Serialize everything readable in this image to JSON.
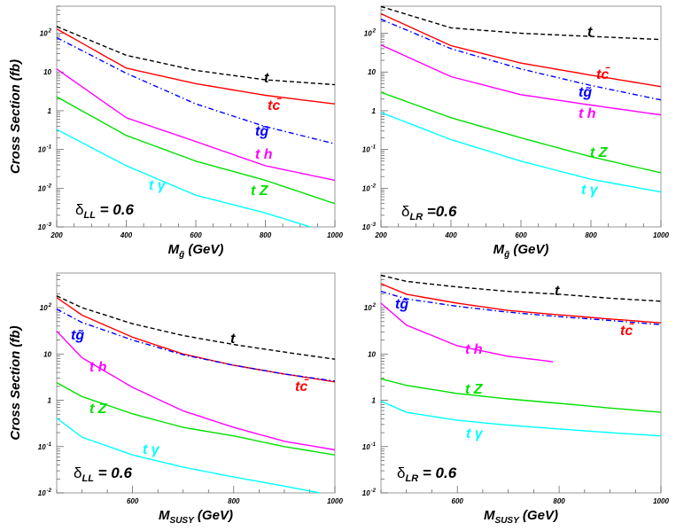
{
  "colors": {
    "t": "#000000",
    "tc": "#ff0000",
    "tg": "#0000ff",
    "th": "#ff00ff",
    "tZ": "#00e000",
    "tgamma": "#00ffff"
  },
  "chart_data": [
    {
      "type": "line",
      "yscale": "log",
      "grid": false,
      "xlabel": {
        "main": "M",
        "sub": "g̃",
        "unit": " (GeV)"
      },
      "ylabel": "Cross Section (fb)",
      "annotation": {
        "symbol": "δ",
        "sub": "LL",
        "value": " = 0.6"
      },
      "xlim": [
        200,
        1000
      ],
      "ylim": [
        0.001,
        500
      ],
      "xticks": [
        "200",
        "400",
        "600",
        "800",
        "1000"
      ],
      "yticks": [
        {
          "v": 0.001,
          "base": "10",
          "exp": "-3"
        },
        {
          "v": 0.01,
          "base": "10",
          "exp": "-2"
        },
        {
          "v": 0.1,
          "base": "10",
          "exp": "-1"
        },
        {
          "v": 1,
          "base": "1",
          "exp": ""
        },
        {
          "v": 10,
          "base": "10",
          "exp": ""
        },
        {
          "v": 100,
          "base": "10",
          "exp": "2"
        }
      ],
      "series": [
        {
          "name": "t",
          "key": "t",
          "style": "dashed",
          "x": [
            200,
            400,
            600,
            800,
            1000
          ],
          "y": [
            150,
            27,
            11,
            6.3,
            4.7
          ]
        },
        {
          "name": "tc̄",
          "key": "tc",
          "style": "solid",
          "x": [
            200,
            400,
            600,
            800,
            1000
          ],
          "y": [
            130,
            12.6,
            5,
            2.5,
            1.5
          ]
        },
        {
          "name": "tg̃",
          "key": "tg",
          "style": "dashdot",
          "x": [
            200,
            400,
            600,
            800,
            1000
          ],
          "y": [
            77,
            9.3,
            1.5,
            0.39,
            0.14
          ]
        },
        {
          "name": "t h",
          "key": "th",
          "style": "solid",
          "x": [
            200,
            400,
            600,
            800,
            1000
          ],
          "y": [
            12,
            0.66,
            0.16,
            0.038,
            0.016
          ]
        },
        {
          "name": "t Z",
          "key": "tZ",
          "style": "solid",
          "x": [
            200,
            400,
            600,
            800,
            1000
          ],
          "y": [
            2.3,
            0.23,
            0.05,
            0.016,
            0.004
          ]
        },
        {
          "name": "t γ",
          "key": "tgamma",
          "style": "solid",
          "x": [
            200,
            400,
            600,
            800,
            930
          ],
          "y": [
            0.33,
            0.038,
            0.0066,
            0.0023,
            0.001
          ]
        }
      ]
    },
    {
      "type": "line",
      "yscale": "log",
      "grid": false,
      "xlabel": {
        "main": "M",
        "sub": "g̃",
        "unit": " (GeV)"
      },
      "ylabel": "",
      "annotation": {
        "symbol": "δ",
        "sub": "LR",
        "value": " =0.6"
      },
      "xlim": [
        200,
        1000
      ],
      "ylim": [
        0.001,
        500
      ],
      "xticks": [
        "200",
        "400",
        "600",
        "800",
        "1000"
      ],
      "yticks": [
        {
          "v": 0.001,
          "base": "10",
          "exp": "-3"
        },
        {
          "v": 0.01,
          "base": "10",
          "exp": "-2"
        },
        {
          "v": 0.1,
          "base": "10",
          "exp": "-1"
        },
        {
          "v": 1,
          "base": "1",
          "exp": ""
        },
        {
          "v": 10,
          "base": "10",
          "exp": ""
        },
        {
          "v": 100,
          "base": "10",
          "exp": "2"
        }
      ],
      "series": [
        {
          "name": "t",
          "key": "t",
          "style": "dashed",
          "x": [
            200,
            400,
            600,
            800,
            1000
          ],
          "y": [
            490,
            138,
            100,
            83,
            69
          ]
        },
        {
          "name": "tc̄",
          "key": "tc",
          "style": "solid",
          "x": [
            200,
            400,
            600,
            800,
            1000
          ],
          "y": [
            320,
            48,
            17,
            8.3,
            4.2
          ]
        },
        {
          "name": "tg̃",
          "key": "tg",
          "style": "dashdot",
          "x": [
            200,
            400,
            600,
            800,
            1000
          ],
          "y": [
            230,
            40,
            12,
            4.5,
            1.9
          ]
        },
        {
          "name": "t h",
          "key": "th",
          "style": "solid",
          "x": [
            200,
            400,
            600,
            800,
            1000
          ],
          "y": [
            50,
            7.6,
            2.6,
            1.4,
            0.78
          ]
        },
        {
          "name": "t Z",
          "key": "tZ",
          "style": "solid",
          "x": [
            200,
            400,
            600,
            800,
            1000
          ],
          "y": [
            3,
            0.66,
            0.2,
            0.065,
            0.025
          ]
        },
        {
          "name": "t γ",
          "key": "tgamma",
          "style": "solid",
          "x": [
            200,
            400,
            600,
            800,
            1000
          ],
          "y": [
            0.9,
            0.18,
            0.05,
            0.017,
            0.008
          ]
        }
      ]
    },
    {
      "type": "line",
      "yscale": "log",
      "grid": false,
      "xlabel": {
        "main": "M",
        "sub": "SUSY",
        "unit": " (GeV)"
      },
      "ylabel": "Cross Section (fb)",
      "annotation": {
        "symbol": "δ",
        "sub": "LL",
        "value": " = 0.6"
      },
      "xlim": [
        450,
        1000
      ],
      "ylim": [
        0.01,
        560
      ],
      "xticks": [
        "600",
        "800",
        "1000"
      ],
      "yticks": [
        {
          "v": 0.01,
          "base": "10",
          "exp": "-2"
        },
        {
          "v": 0.1,
          "base": "10",
          "exp": "-1"
        },
        {
          "v": 1,
          "base": "1",
          "exp": ""
        },
        {
          "v": 10,
          "base": "10",
          "exp": ""
        },
        {
          "v": 100,
          "base": "10",
          "exp": "2"
        }
      ],
      "series": [
        {
          "name": "t",
          "key": "t",
          "style": "dashed",
          "x": [
            450,
            500,
            600,
            700,
            800,
            900,
            1000
          ],
          "y": [
            180,
            100,
            45,
            25,
            16,
            11,
            7.7
          ]
        },
        {
          "name": "tc̄",
          "key": "tc",
          "style": "solid",
          "x": [
            450,
            500,
            600,
            700,
            800,
            900,
            1000
          ],
          "y": [
            165,
            69,
            23,
            10,
            5.7,
            3.7,
            2.5
          ]
        },
        {
          "name": "tg̃",
          "key": "tg",
          "style": "dashdot",
          "x": [
            450,
            500,
            600,
            700,
            800,
            900,
            1000
          ],
          "y": [
            93,
            48,
            20,
            9.6,
            5.7,
            3.7,
            2.6
          ]
        },
        {
          "name": "t h",
          "key": "th",
          "style": "solid",
          "x": [
            450,
            500,
            600,
            700,
            800,
            900,
            1000
          ],
          "y": [
            31,
            8.3,
            1.9,
            0.59,
            0.26,
            0.13,
            0.085
          ]
        },
        {
          "name": "t Z",
          "key": "tZ",
          "style": "solid",
          "x": [
            450,
            500,
            600,
            700,
            800,
            900,
            1000
          ],
          "y": [
            2.4,
            1.2,
            0.51,
            0.26,
            0.17,
            0.1,
            0.066
          ]
        },
        {
          "name": "t γ",
          "key": "tgamma",
          "style": "solid",
          "x": [
            450,
            500,
            600,
            700,
            800,
            900,
            970
          ],
          "y": [
            0.41,
            0.16,
            0.066,
            0.036,
            0.022,
            0.014,
            0.01
          ]
        }
      ]
    },
    {
      "type": "line",
      "yscale": "log",
      "grid": false,
      "xlabel": {
        "main": "M",
        "sub": "SUSY",
        "unit": " (GeV)"
      },
      "ylabel": "",
      "annotation": {
        "symbol": "δ",
        "sub": "LR",
        "value": " = 0.6"
      },
      "xlim": [
        450,
        1000
      ],
      "ylim": [
        0.01,
        560
      ],
      "xticks": [
        "600",
        "800",
        "1000"
      ],
      "yticks": [
        {
          "v": 0.01,
          "base": "10",
          "exp": "-2"
        },
        {
          "v": 0.1,
          "base": "10",
          "exp": "-1"
        },
        {
          "v": 1,
          "base": "1",
          "exp": ""
        },
        {
          "v": 10,
          "base": "10",
          "exp": ""
        },
        {
          "v": 100,
          "base": "10",
          "exp": "2"
        }
      ],
      "series": [
        {
          "name": "t",
          "key": "t",
          "style": "dashed",
          "x": [
            450,
            500,
            600,
            700,
            800,
            900,
            1000
          ],
          "y": [
            500,
            370,
            280,
            225,
            195,
            160,
            138
          ]
        },
        {
          "name": "tc̄",
          "key": "tc",
          "style": "solid",
          "x": [
            450,
            500,
            600,
            700,
            800,
            900,
            1000
          ],
          "y": [
            330,
            195,
            125,
            87,
            70,
            57,
            47
          ]
        },
        {
          "name": "tg̃",
          "key": "tg",
          "style": "dashdot",
          "x": [
            450,
            500,
            600,
            700,
            800,
            900,
            1000
          ],
          "y": [
            225,
            155,
            107,
            80,
            64,
            53,
            43
          ]
        },
        {
          "name": "t h",
          "key": "th",
          "style": "solid",
          "x": [
            450,
            500,
            600,
            700,
            788
          ],
          "y": [
            125,
            42,
            15,
            8.9,
            6.8
          ]
        },
        {
          "name": "t Z",
          "key": "tZ",
          "style": "solid",
          "x": [
            450,
            500,
            600,
            700,
            800,
            900,
            1000
          ],
          "y": [
            2.9,
            2.1,
            1.4,
            1.07,
            0.86,
            0.68,
            0.55
          ]
        },
        {
          "name": "t γ",
          "key": "tgamma",
          "style": "solid",
          "x": [
            450,
            500,
            600,
            700,
            800,
            900,
            1000
          ],
          "y": [
            0.96,
            0.55,
            0.37,
            0.29,
            0.24,
            0.2,
            0.17
          ]
        }
      ]
    }
  ]
}
